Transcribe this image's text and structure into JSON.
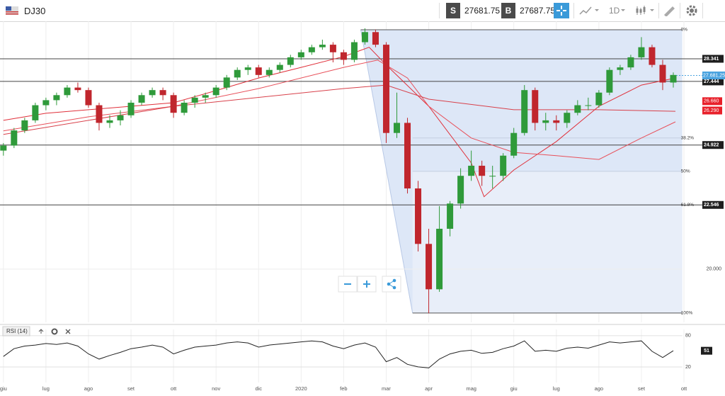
{
  "toolbar": {
    "symbol": "DJ30",
    "sell_label": "S",
    "sell": "27681.75",
    "buy_label": "B",
    "buy": "27687.75",
    "timeframe": "1D"
  },
  "chart_data": [
    {
      "type": "candlestick",
      "x": [
        0,
        0.25,
        0.5,
        0.75,
        1,
        1.25,
        1.5,
        1.75,
        2,
        2.25,
        2.5,
        2.75,
        3,
        3.25,
        3.5,
        3.75,
        4,
        4.25,
        4.5,
        4.75,
        5,
        5.25,
        5.5,
        5.75,
        6,
        6.25,
        6.5,
        6.75,
        7,
        7.25,
        7.5,
        7.75,
        8,
        8.25,
        8.5,
        8.75,
        9,
        9.25,
        9.5,
        9.75,
        10,
        10.25,
        10.5,
        10.75,
        11,
        11.25,
        11.5,
        11.75,
        12,
        12.25,
        12.5,
        12.75,
        13,
        13.25,
        13.5,
        13.75,
        14,
        14.25,
        14.5,
        14.75,
        15,
        15.25,
        15.5,
        15.75
      ],
      "ohlc": [
        [
          24700,
          25000,
          24500,
          24900
        ],
        [
          24900,
          25600,
          24800,
          25500
        ],
        [
          25500,
          26000,
          25400,
          25900
        ],
        [
          25900,
          26600,
          25800,
          26500
        ],
        [
          26500,
          26800,
          26300,
          26700
        ],
        [
          26700,
          27000,
          26500,
          26900
        ],
        [
          26900,
          27300,
          26800,
          27200
        ],
        [
          27200,
          27400,
          27000,
          27100
        ],
        [
          27100,
          27200,
          26400,
          26500
        ],
        [
          26500,
          26600,
          25500,
          25800
        ],
        [
          25800,
          26100,
          25600,
          25900
        ],
        [
          25900,
          26300,
          25700,
          26100
        ],
        [
          26100,
          26700,
          26000,
          26600
        ],
        [
          26600,
          27000,
          26500,
          26900
        ],
        [
          26900,
          27200,
          26800,
          27100
        ],
        [
          27100,
          27200,
          26700,
          26900
        ],
        [
          26900,
          27000,
          26000,
          26200
        ],
        [
          26200,
          26700,
          26100,
          26600
        ],
        [
          26600,
          26900,
          26400,
          26800
        ],
        [
          26800,
          27000,
          26600,
          26900
        ],
        [
          26900,
          27300,
          26800,
          27200
        ],
        [
          27200,
          27700,
          27100,
          27600
        ],
        [
          27600,
          28000,
          27500,
          27900
        ],
        [
          27900,
          28100,
          27700,
          28000
        ],
        [
          28000,
          28100,
          27600,
          27700
        ],
        [
          27700,
          28000,
          27600,
          27900
        ],
        [
          27900,
          28200,
          27800,
          28100
        ],
        [
          28100,
          28500,
          28000,
          28400
        ],
        [
          28400,
          28700,
          28300,
          28600
        ],
        [
          28600,
          28900,
          28500,
          28800
        ],
        [
          28800,
          29100,
          28700,
          28900
        ],
        [
          28900,
          29000,
          28200,
          28600
        ],
        [
          28600,
          28700,
          28100,
          28300
        ],
        [
          28300,
          29100,
          28200,
          29000
        ],
        [
          29000,
          29550,
          28900,
          29400
        ],
        [
          29400,
          29500,
          28800,
          28900
        ],
        [
          28900,
          29000,
          25000,
          25400
        ],
        [
          25400,
          27000,
          25200,
          25800
        ],
        [
          25800,
          26000,
          23000,
          23200
        ],
        [
          23200,
          23500,
          20700,
          21000
        ],
        [
          21000,
          21600,
          18250,
          19200
        ],
        [
          19200,
          22500,
          19100,
          21600
        ],
        [
          21600,
          22700,
          21300,
          22600
        ],
        [
          22600,
          24000,
          22400,
          23700
        ],
        [
          23700,
          24700,
          23500,
          24100
        ],
        [
          24100,
          24300,
          23300,
          23700
        ],
        [
          23700,
          24100,
          23200,
          23700
        ],
        [
          23700,
          24600,
          23500,
          24500
        ],
        [
          24500,
          25600,
          24400,
          25400
        ],
        [
          25400,
          27300,
          25300,
          27100
        ],
        [
          27100,
          27200,
          25500,
          25800
        ],
        [
          25800,
          26200,
          25500,
          25900
        ],
        [
          25900,
          26100,
          25500,
          25800
        ],
        [
          25800,
          26300,
          25600,
          26200
        ],
        [
          26200,
          26700,
          26100,
          26500
        ],
        [
          26500,
          26800,
          26300,
          26500
        ],
        [
          26500,
          27100,
          26400,
          27000
        ],
        [
          27000,
          28000,
          26900,
          27900
        ],
        [
          27900,
          28100,
          27700,
          28000
        ],
        [
          28000,
          28500,
          27900,
          28400
        ],
        [
          28400,
          29200,
          28300,
          28800
        ],
        [
          28800,
          28900,
          28000,
          28100
        ],
        [
          28100,
          28300,
          27100,
          27400
        ],
        [
          27400,
          27800,
          27200,
          27700
        ]
      ],
      "colors": {
        "up": "#2f9a3a",
        "down": "#c0262d"
      },
      "xlim": [
        -0.08,
        15.96
      ],
      "xticks": [
        {
          "value": 0,
          "label": "giu"
        },
        {
          "value": 1,
          "label": "lug"
        },
        {
          "value": 2,
          "label": "ago"
        },
        {
          "value": 3,
          "label": "set"
        },
        {
          "value": 4,
          "label": "ott"
        },
        {
          "value": 5,
          "label": "nov"
        },
        {
          "value": 6,
          "label": "dic"
        },
        {
          "value": 7,
          "label": "2020"
        },
        {
          "value": 8,
          "label": "feb"
        },
        {
          "value": 9,
          "label": "mar"
        },
        {
          "value": 10,
          "label": "apr"
        },
        {
          "value": 11,
          "label": "mag"
        },
        {
          "value": 12,
          "label": "giu"
        },
        {
          "value": 13,
          "label": "lug"
        },
        {
          "value": 14,
          "label": "ago"
        },
        {
          "value": 15,
          "label": "set"
        },
        {
          "value": 16,
          "label": "ott"
        }
      ],
      "ylim": [
        17890,
        29830
      ],
      "yticks": [
        {
          "value": 20000,
          "label": "20.000"
        }
      ],
      "grid": true,
      "moving_averages": [
        {
          "color": "#e0303a",
          "x": [
            0,
            1,
            2,
            3,
            4,
            5,
            6,
            7,
            8,
            8.6,
            9,
            10,
            11,
            11.3,
            12,
            13,
            14,
            15,
            15.8
          ],
          "values": [
            25900,
            26180,
            26320,
            26460,
            26600,
            27080,
            27580,
            28000,
            28430,
            28800,
            28100,
            26460,
            24210,
            22870,
            23930,
            25060,
            26460,
            27300,
            27580
          ]
        },
        {
          "color": "#e8505a",
          "x": [
            0,
            2,
            4,
            6,
            8,
            8.8,
            9.5,
            10,
            11,
            12,
            13,
            14,
            15,
            15.8
          ],
          "values": [
            25480,
            26040,
            26460,
            27160,
            28000,
            28290,
            27580,
            26460,
            25200,
            24630,
            24500,
            24350,
            25200,
            25840
          ]
        },
        {
          "color": "#d8404a",
          "x": [
            0,
            4,
            8,
            9,
            10,
            12,
            14,
            15.8
          ],
          "values": [
            25340,
            26460,
            27160,
            27300,
            26740,
            26320,
            26320,
            26260
          ]
        }
      ],
      "hlines": [
        {
          "value": 28341,
          "label": "28.341"
        },
        {
          "value": 27444,
          "label": "27.444"
        },
        {
          "value": 24922,
          "label": "24.922"
        },
        {
          "value": 22546,
          "label": "22.546"
        }
      ],
      "last_price": {
        "value": 27681.25,
        "label": "27.681,25"
      },
      "tags": [
        {
          "value": 26660,
          "label": "26.660"
        },
        {
          "value": 26290,
          "label": "26.290"
        }
      ],
      "fibonacci": {
        "x": [
          8.4,
          9.62
        ],
        "levels": [
          {
            "value": 29494,
            "label": "0%"
          },
          {
            "value": 25202,
            "label": "38.2%"
          },
          {
            "value": 23876,
            "label": "50%"
          },
          {
            "value": 22550,
            "label": "61.8%"
          },
          {
            "value": 18258,
            "label": "100%"
          }
        ]
      }
    },
    {
      "type": "line",
      "title": "RSI (14)",
      "color": "#222222",
      "values": [
        40,
        55,
        60,
        62,
        65,
        63,
        66,
        60,
        45,
        35,
        42,
        48,
        55,
        58,
        62,
        58,
        45,
        52,
        58,
        60,
        62,
        66,
        68,
        66,
        58,
        62,
        64,
        66,
        68,
        70,
        68,
        60,
        55,
        62,
        66,
        58,
        30,
        38,
        25,
        20,
        18,
        35,
        45,
        50,
        52,
        46,
        48,
        55,
        60,
        70,
        50,
        52,
        50,
        56,
        58,
        56,
        62,
        68,
        66,
        68,
        70,
        50,
        38,
        51
      ],
      "ylim": [
        -10,
        92
      ],
      "yticks": [
        20,
        80
      ],
      "last_value": 51
    }
  ]
}
